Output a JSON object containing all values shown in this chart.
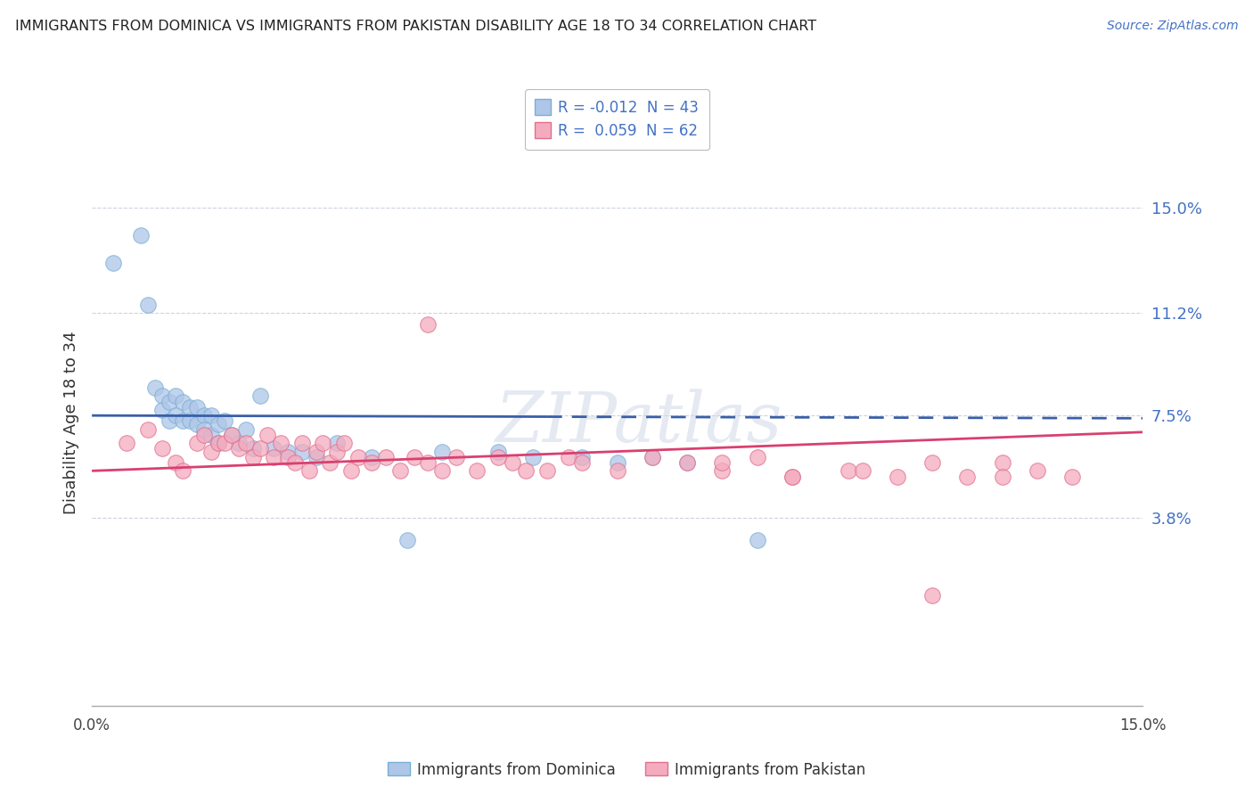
{
  "title": "IMMIGRANTS FROM DOMINICA VS IMMIGRANTS FROM PAKISTAN DISABILITY AGE 18 TO 34 CORRELATION CHART",
  "source": "Source: ZipAtlas.com",
  "ylabel": "Disability Age 18 to 34",
  "ytick_vals": [
    0.038,
    0.075,
    0.112,
    0.15
  ],
  "ytick_labels": [
    "3.8%",
    "7.5%",
    "11.2%",
    "15.0%"
  ],
  "xlim": [
    0.0,
    0.15
  ],
  "ylim": [
    -0.03,
    0.175
  ],
  "legend_r1": "R = -0.012  N = 43",
  "legend_r2": "R =  0.059  N = 62",
  "dominica_color": "#aec6e8",
  "pakistan_color": "#f4abbe",
  "dominica_edge": "#7aafd4",
  "pakistan_edge": "#e07090",
  "trendline_dom_color": "#3a5fa8",
  "trendline_pak_color": "#d94070",
  "watermark": "ZIPatlas",
  "dom_x": [
    0.003,
    0.007,
    0.008,
    0.009,
    0.01,
    0.01,
    0.011,
    0.011,
    0.012,
    0.012,
    0.013,
    0.013,
    0.014,
    0.014,
    0.015,
    0.015,
    0.016,
    0.016,
    0.017,
    0.017,
    0.018,
    0.018,
    0.019,
    0.02,
    0.021,
    0.022,
    0.023,
    0.024,
    0.026,
    0.028,
    0.03,
    0.032,
    0.035,
    0.04,
    0.045,
    0.05,
    0.058,
    0.063,
    0.07,
    0.075,
    0.08,
    0.085,
    0.095
  ],
  "dom_y": [
    0.13,
    0.14,
    0.115,
    0.085,
    0.082,
    0.077,
    0.08,
    0.073,
    0.082,
    0.075,
    0.08,
    0.073,
    0.078,
    0.073,
    0.078,
    0.072,
    0.075,
    0.07,
    0.075,
    0.068,
    0.072,
    0.065,
    0.073,
    0.068,
    0.065,
    0.07,
    0.063,
    0.082,
    0.063,
    0.062,
    0.062,
    0.06,
    0.065,
    0.06,
    0.03,
    0.062,
    0.062,
    0.06,
    0.06,
    0.058,
    0.06,
    0.058,
    0.03
  ],
  "pak_x": [
    0.005,
    0.008,
    0.01,
    0.012,
    0.013,
    0.015,
    0.016,
    0.017,
    0.018,
    0.019,
    0.02,
    0.021,
    0.022,
    0.023,
    0.024,
    0.025,
    0.026,
    0.027,
    0.028,
    0.029,
    0.03,
    0.031,
    0.032,
    0.033,
    0.034,
    0.035,
    0.036,
    0.037,
    0.038,
    0.04,
    0.042,
    0.044,
    0.046,
    0.048,
    0.05,
    0.052,
    0.055,
    0.058,
    0.06,
    0.062,
    0.065,
    0.068,
    0.07,
    0.075,
    0.08,
    0.085,
    0.09,
    0.095,
    0.1,
    0.108,
    0.115,
    0.12,
    0.125,
    0.13,
    0.135,
    0.14,
    0.048,
    0.09,
    0.1,
    0.11,
    0.12,
    0.13
  ],
  "pak_y": [
    0.065,
    0.07,
    0.063,
    0.058,
    0.055,
    0.065,
    0.068,
    0.062,
    0.065,
    0.065,
    0.068,
    0.063,
    0.065,
    0.06,
    0.063,
    0.068,
    0.06,
    0.065,
    0.06,
    0.058,
    0.065,
    0.055,
    0.062,
    0.065,
    0.058,
    0.062,
    0.065,
    0.055,
    0.06,
    0.058,
    0.06,
    0.055,
    0.06,
    0.058,
    0.055,
    0.06,
    0.055,
    0.06,
    0.058,
    0.055,
    0.055,
    0.06,
    0.058,
    0.055,
    0.06,
    0.058,
    0.055,
    0.06,
    0.053,
    0.055,
    0.053,
    0.058,
    0.053,
    0.058,
    0.055,
    0.053,
    0.108,
    0.058,
    0.053,
    0.055,
    0.01,
    0.053
  ],
  "dom_trend_x": [
    0.0,
    0.15
  ],
  "dom_trend_y_start": 0.075,
  "dom_trend_y_end": 0.074,
  "pak_trend_y_start": 0.055,
  "pak_trend_y_end": 0.069
}
